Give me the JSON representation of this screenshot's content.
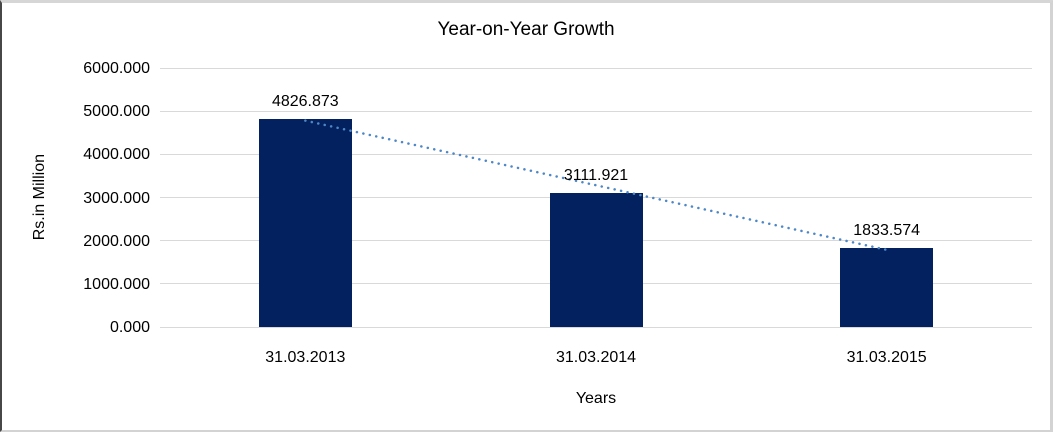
{
  "chart_data": {
    "type": "bar",
    "title": "Year-on-Year Growth",
    "xlabel": "Years",
    "ylabel": "Rs.in Million",
    "categories": [
      "31.03.2013",
      "31.03.2014",
      "31.03.2015"
    ],
    "values": [
      4826.873,
      3111.921,
      1833.574
    ],
    "data_labels": [
      "4826.873",
      "3111.921",
      "1833.574"
    ],
    "ylim": [
      0,
      6000
    ],
    "ytick_step": 1000,
    "ytick_labels": [
      "0.000",
      "1000.000",
      "2000.000",
      "3000.000",
      "4000.000",
      "5000.000",
      "6000.000"
    ],
    "grid": true,
    "legend_position": "none",
    "trendline": {
      "type": "linear",
      "style": "dotted",
      "spans": "first-bar-top-to-last-bar-top"
    },
    "colors": {
      "bar": "#03215E",
      "gridline": "#D9D9D9",
      "trendline": "#4E87C7",
      "text": "#000000",
      "background": "#FFFFFF"
    }
  }
}
